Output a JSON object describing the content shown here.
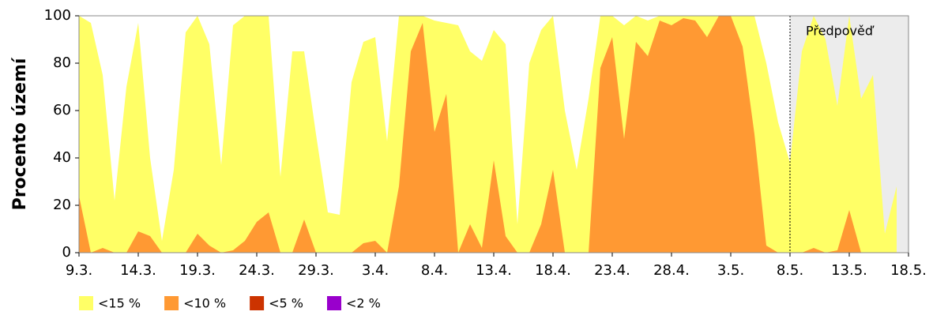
{
  "chart_data": {
    "type": "area",
    "y_label": "Procento území",
    "annotation": "Předpověď",
    "forecast_from": "8.5.",
    "categories": [
      "9.3.",
      null,
      null,
      null,
      null,
      "14.3.",
      null,
      null,
      null,
      null,
      "19.3.",
      null,
      null,
      null,
      null,
      "24.3.",
      null,
      null,
      null,
      null,
      "29.3.",
      null,
      null,
      null,
      null,
      "3.4.",
      null,
      null,
      null,
      null,
      "8.4.",
      null,
      null,
      null,
      null,
      "13.4.",
      null,
      null,
      null,
      null,
      "18.4.",
      null,
      null,
      null,
      null,
      "23.4.",
      null,
      null,
      null,
      null,
      "28.4.",
      null,
      null,
      null,
      null,
      "3.5.",
      null,
      null,
      null,
      null,
      "8.5.",
      null,
      null,
      null,
      null,
      "13.5.",
      null,
      null,
      null,
      null,
      "18.5."
    ],
    "series": [
      {
        "name": "<15 %",
        "color": "#ffff66",
        "values": [
          100,
          97,
          75,
          22,
          70,
          97,
          40,
          5,
          35,
          93,
          100,
          88,
          37,
          96,
          100,
          100,
          100,
          32,
          85,
          85,
          50,
          17,
          16,
          72,
          89,
          91,
          47,
          100,
          100,
          100,
          98,
          97,
          96,
          85,
          81,
          94,
          88,
          12,
          80,
          94,
          100,
          60,
          35,
          65,
          100,
          100,
          96,
          100,
          98,
          100,
          100,
          100,
          100,
          100,
          100,
          100,
          100,
          100,
          80,
          55,
          38,
          85,
          100,
          90,
          62,
          100,
          65,
          75,
          8,
          28,
          null
        ]
      },
      {
        "name": "<10 %",
        "color": "#ff9933",
        "values": [
          24,
          0,
          2,
          0,
          0,
          9,
          7,
          0,
          0,
          0,
          8,
          3,
          0,
          1,
          5,
          13,
          17,
          0,
          0,
          14,
          0,
          0,
          0,
          0,
          4,
          5,
          0,
          28,
          85,
          97,
          51,
          67,
          0,
          12,
          2,
          39,
          7,
          0,
          0,
          12,
          35,
          0,
          0,
          0,
          78,
          91,
          48,
          89,
          83,
          98,
          96,
          99,
          98,
          91,
          100,
          100,
          87,
          50,
          3,
          0,
          0,
          0,
          2,
          0,
          1,
          18,
          0,
          0,
          0,
          0,
          null
        ]
      },
      {
        "name": "<5 %",
        "color": "#cc3300",
        "values": [
          0,
          0,
          0,
          0,
          0,
          0,
          0,
          0,
          0,
          0,
          0,
          0,
          0,
          0,
          0,
          0,
          0,
          0,
          0,
          0,
          0,
          0,
          0,
          0,
          0,
          0,
          0,
          0,
          0,
          0,
          0,
          0,
          0,
          0,
          0,
          0,
          0,
          0,
          0,
          0,
          0,
          0,
          0,
          0,
          0,
          0,
          0,
          0,
          0,
          0,
          0,
          0,
          0,
          0,
          0,
          0,
          0,
          0,
          0,
          0,
          0,
          0,
          0,
          0,
          0,
          0,
          0,
          0,
          0,
          0,
          null
        ]
      },
      {
        "name": "<2 %",
        "color": "#9900cc",
        "values": [
          0,
          0,
          0,
          0,
          0,
          0,
          0,
          0,
          0,
          0,
          0,
          0,
          0,
          0,
          0,
          0,
          0,
          0,
          0,
          0,
          0,
          0,
          0,
          0,
          0,
          0,
          0,
          0,
          0,
          0,
          0,
          0,
          0,
          0,
          0,
          0,
          0,
          0,
          0,
          0,
          0,
          0,
          0,
          0,
          0,
          0,
          0,
          0,
          0,
          0,
          0,
          0,
          0,
          0,
          0,
          0,
          0,
          0,
          0,
          0,
          0,
          0,
          0,
          0,
          0,
          0,
          0,
          0,
          0,
          0,
          null
        ]
      }
    ],
    "ylim": [
      0,
      100
    ],
    "yticks": [
      0,
      20,
      40,
      60,
      80,
      100
    ],
    "grid": false
  }
}
